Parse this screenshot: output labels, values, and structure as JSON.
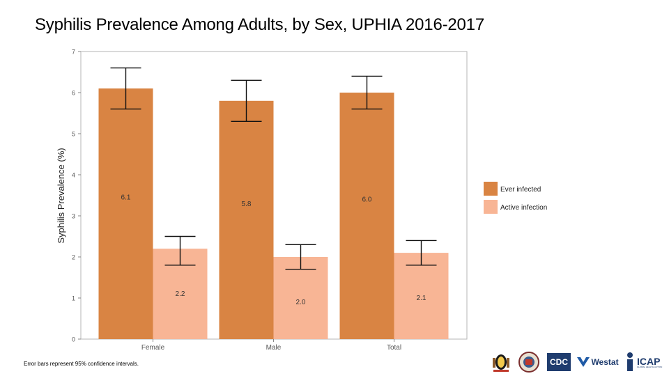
{
  "title": "Syphilis Prevalence Among Adults, by Sex, UPHIA 2016-2017",
  "footnote": "Error bars represent 95% confidence intervals.",
  "logos": {
    "cdc": "CDC",
    "westat": "Westat",
    "icap": "ICAP",
    "icap_sub": "GLOBAL HEALTH ACTION"
  },
  "chart_data": {
    "type": "bar",
    "title": "",
    "xlabel": "",
    "ylabel": "Syphilis Prevalence (%)",
    "ylim": [
      0,
      7
    ],
    "yticks": [
      "0",
      "1",
      "2",
      "3",
      "4",
      "5",
      "6",
      "7"
    ],
    "categories": [
      "Female",
      "Male",
      "Total"
    ],
    "series": [
      {
        "name": "Ever infected",
        "color": "#D98443",
        "values": [
          6.1,
          5.8,
          6.0
        ],
        "labels": [
          "6.1",
          "5.8",
          "6.0"
        ],
        "ci": [
          [
            5.6,
            6.6
          ],
          [
            5.3,
            6.3
          ],
          [
            5.6,
            6.4
          ]
        ]
      },
      {
        "name": "Active infection",
        "color": "#F8B595",
        "values": [
          2.2,
          2.0,
          2.1
        ],
        "labels": [
          "2.2",
          "2.0",
          "2.1"
        ],
        "ci": [
          [
            1.8,
            2.5
          ],
          [
            1.7,
            2.3
          ],
          [
            1.8,
            2.4
          ]
        ]
      }
    ],
    "legend": "right"
  }
}
